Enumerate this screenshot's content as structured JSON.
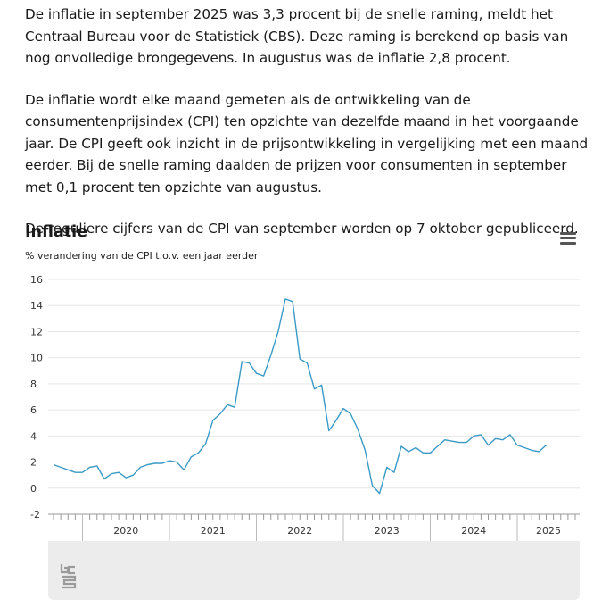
{
  "article": {
    "p1": "De inflatie in september 2025 was 3,3 procent bij de snelle raming, meldt het Centraal Bureau voor de Statistiek (CBS). Deze raming is berekend op basis van nog onvolledige brongegevens. In augustus was de inflatie 2,8 procent.",
    "p2": "De inflatie wordt elke maand gemeten als de ontwikkeling van de consumentenprijsindex (CPI) ten opzichte van dezelfde maand in het voorgaande jaar. De CPI geeft ook inzicht in de prijsontwikkeling in vergelijking met een maand eerder. Bij de snelle raming daalden de prijzen voor consumenten in september met 0,1 procent ten opzichte van augustus.",
    "p3": "De reguliere cijfers van de CPI van september worden op 7 oktober gepubliceerd."
  },
  "chart_data": {
    "type": "line",
    "title": "Inflatie",
    "subtitle": "% verandering van de CPI t.o.v. een jaar eerder",
    "ylim": [
      -2,
      16
    ],
    "yticks": [
      16,
      14,
      12,
      10,
      8,
      6,
      4,
      2,
      0,
      -2
    ],
    "grid": true,
    "line_color": "#3a9ac6",
    "year_labels": [
      "2020",
      "2021",
      "2022",
      "2023",
      "2024",
      "2025"
    ],
    "x_start": "2019-09",
    "x_end": "2025-09",
    "series": [
      {
        "values": [
          1.8,
          1.6,
          1.4,
          1.2,
          1.2,
          1.6,
          1.7,
          0.7,
          1.1,
          1.2,
          0.8,
          1.0,
          1.6,
          1.8,
          1.9,
          1.9,
          2.1,
          2.0,
          1.4,
          2.4,
          2.7,
          3.4,
          5.2,
          5.7,
          6.4,
          6.2,
          9.7,
          9.6,
          8.8,
          8.6,
          10.2,
          12.0,
          14.5,
          14.3,
          9.9,
          9.6,
          7.6,
          7.9,
          4.4,
          5.2,
          6.1,
          5.7,
          4.5,
          2.9,
          0.2,
          -0.4,
          1.6,
          1.2,
          3.2,
          2.8,
          3.1,
          2.7,
          2.7,
          3.2,
          3.7,
          3.6,
          3.5,
          3.5,
          4.0,
          4.1,
          3.3,
          3.8,
          3.7,
          4.1,
          3.3,
          3.1,
          2.9,
          2.8,
          3.3
        ]
      }
    ]
  }
}
